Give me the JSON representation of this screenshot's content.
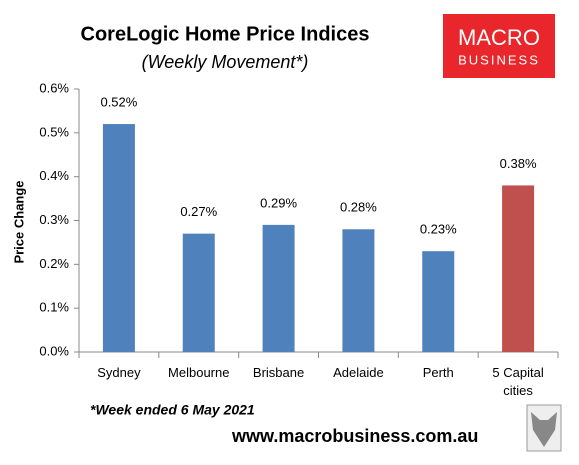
{
  "chart_data": {
    "type": "bar",
    "title": "CoreLogic Home Price Indices",
    "subtitle": "(Weekly Movement*)",
    "y_label": "Price Change",
    "categories": [
      "Sydney",
      "Melbourne",
      "Brisbane",
      "Adelaide",
      "Perth",
      "5 Capital cities"
    ],
    "values": [
      0.52,
      0.27,
      0.29,
      0.28,
      0.23,
      0.38
    ],
    "value_labels": [
      "0.52%",
      "0.27%",
      "0.29%",
      "0.28%",
      "0.23%",
      "0.38%"
    ],
    "colors": [
      "#4f81bd",
      "#4f81bd",
      "#4f81bd",
      "#4f81bd",
      "#4f81bd",
      "#c0504d"
    ],
    "ylim": [
      0,
      0.6
    ],
    "yticks": [
      {
        "value": 0,
        "label": "0.0%"
      },
      {
        "value": 0.1,
        "label": "0.1%"
      },
      {
        "value": 0.2,
        "label": "0.2%"
      },
      {
        "value": 0.3,
        "label": "0.3%"
      },
      {
        "value": 0.4,
        "label": "0.4%"
      },
      {
        "value": 0.5,
        "label": "0.5%"
      },
      {
        "value": 0.6,
        "label": "0.6%"
      }
    ],
    "grid": false
  },
  "footnote": "*Week ended 6 May 2021",
  "source": "www.macrobusiness.com.au",
  "logo": {
    "line1": "MACRO",
    "line2": "BUSINESS"
  }
}
